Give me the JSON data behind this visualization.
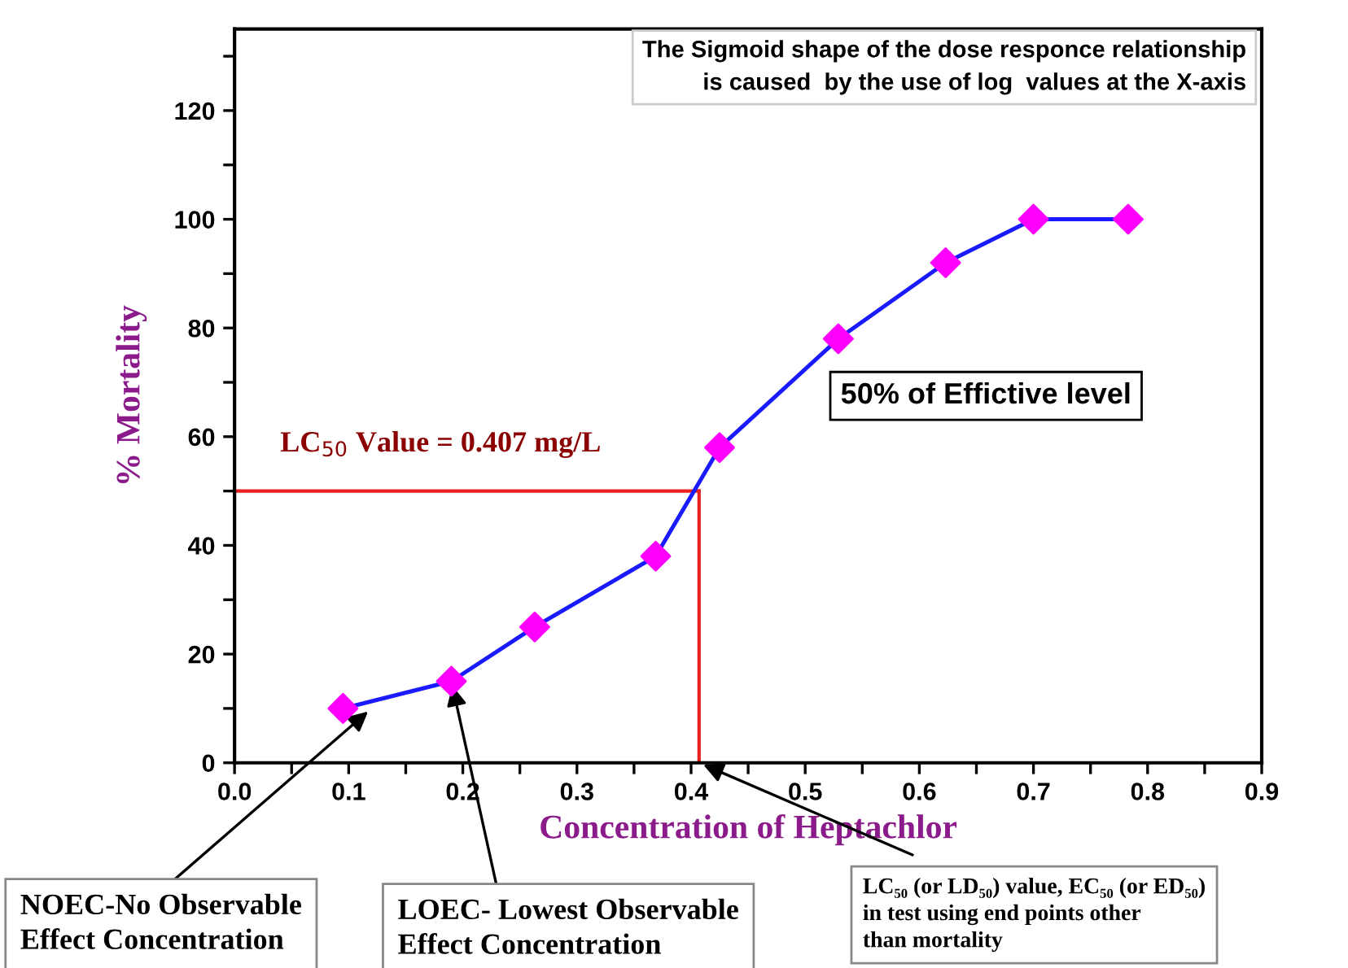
{
  "chart_data": {
    "type": "line",
    "xlabel": "Concentration of Heptachlor",
    "ylabel": "% Mortality",
    "x": [
      0.095,
      0.19,
      0.263,
      0.369,
      0.425,
      0.529,
      0.623,
      0.7,
      0.783
    ],
    "series": [
      {
        "color": "#1a1aff",
        "colors": [
          "#ff00ff",
          "#ff00ff",
          "#ff00ff",
          "#ff00ff",
          "#ff00ff",
          "#ff00ff",
          "#ff00ff",
          "#ff00ff",
          "#ff00ff"
        ],
        "values": [
          10,
          15,
          25,
          38,
          58,
          78,
          92,
          100,
          100
        ]
      }
    ],
    "marker": "diamond",
    "line_style": "solid",
    "xlim": [
      0,
      0.9
    ],
    "ylim": [
      0,
      135
    ],
    "xticks": [
      {
        "value": 0.0,
        "label": "0.0"
      },
      {
        "value": 0.05,
        "label": null
      },
      0.1,
      {
        "value": 0.15,
        "label": null
      },
      0.2,
      {
        "value": 0.25,
        "label": null
      },
      0.3,
      {
        "value": 0.35,
        "label": null
      },
      0.4,
      {
        "value": 0.45,
        "label": null
      },
      0.5,
      {
        "value": 0.55,
        "label": null
      },
      0.6,
      {
        "value": 0.65,
        "label": null
      },
      0.7,
      {
        "value": 0.75,
        "label": null
      },
      0.8,
      {
        "value": 0.85,
        "label": null
      },
      0.9
    ],
    "yticks": [
      0,
      {
        "value": 10,
        "label": null
      },
      20,
      {
        "value": 30,
        "label": null
      },
      40,
      {
        "value": 50,
        "label": null
      },
      60,
      {
        "value": 70,
        "label": null
      },
      80,
      {
        "value": 90,
        "label": null
      },
      100,
      {
        "value": 110,
        "label": null
      },
      120,
      {
        "value": 130,
        "label": null
      }
    ],
    "grid": false,
    "ref_lines": [
      {
        "axis": "y",
        "value": 50,
        "label": "LC$_{50}$ Value = 0.407 mg/L",
        "color": "#e82020",
        "line_style": "solid"
      },
      {
        "axis": "x",
        "value": 0.407,
        "label": null,
        "color": "#e82020",
        "line_style": "solid"
      }
    ],
    "annotations": [
      "The Sigmoid shape of the dose responce relationship\nis caused  by the use of log  values at the X-axis",
      "50% of Effictive level",
      {
        "text": "NOEC-No Observable\nEffect Concentration",
        "x": 0.12,
        "y": 10
      },
      {
        "text": "LOEC- Lowest Observable\nEffect Concentration",
        "x": 0.19,
        "y": 15
      },
      {
        "text": "LC₅₀ (or LD₅₀) value, EC₅₀ (or ED₅₀)\nin test using end points other\nthan mortality",
        "x": 0.407,
        "y": 0
      }
    ]
  }
}
